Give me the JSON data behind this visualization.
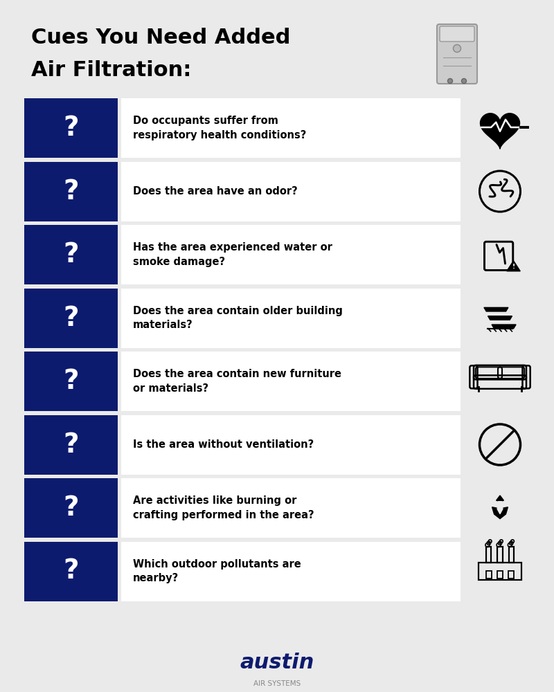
{
  "title_line1": "Cues You Need Added",
  "title_line2": "Air Filtration:",
  "bg_color": "#EAEAEA",
  "dark_blue": "#0D1B6E",
  "white": "#FFFFFF",
  "questions": [
    "Do occupants suffer from\nrespiratory health conditions?",
    "Does the area have an odor?",
    "Has the area experienced water or\nsmoke damage?",
    "Does the area contain older building\nmaterials?",
    "Does the area contain new furniture\nor materials?",
    "Is the area without ventilation?",
    "Are activities like burning or\ncrafting performed in the area?",
    "Which outdoor pollutants are\nnearby?"
  ],
  "brand_name": "austin",
  "brand_sub": "AIR SYSTEMS",
  "brand_color": "#0D1B6E",
  "brand_sub_color": "#888888"
}
